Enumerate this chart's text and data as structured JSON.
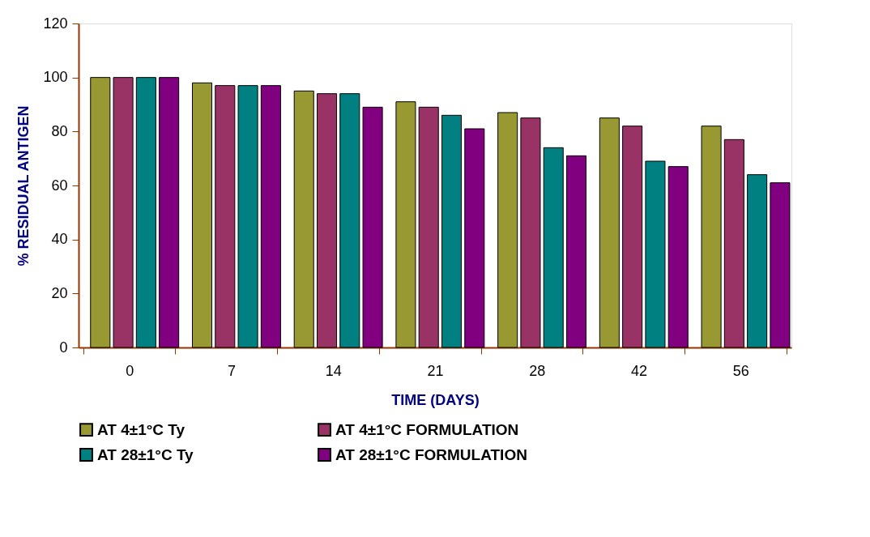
{
  "chart_data": {
    "type": "bar",
    "xlabel": "TIME (DAYS)",
    "ylabel": "% RESIDUAL ANTIGEN",
    "categories": [
      "0",
      "7",
      "14",
      "21",
      "28",
      "42",
      "56"
    ],
    "series": [
      {
        "name": "AT 4±1°C Ty",
        "color": "#999933",
        "values": [
          100,
          98,
          95,
          91,
          87,
          85,
          82
        ]
      },
      {
        "name": "AT 4±1°C FORMULATION",
        "color": "#993366",
        "values": [
          100,
          97,
          94,
          89,
          85,
          82,
          77
        ]
      },
      {
        "name": "AT 28±1°C Ty",
        "color": "#008080",
        "values": [
          100,
          97,
          94,
          86,
          74,
          69,
          64
        ]
      },
      {
        "name": "AT 28±1°C FORMULATION",
        "color": "#800080",
        "values": [
          100,
          97,
          89,
          81,
          71,
          67,
          61
        ]
      }
    ],
    "ylim": [
      0,
      120
    ],
    "yticks": [
      0,
      20,
      40,
      60,
      80,
      100,
      120
    ],
    "grid": false,
    "legend": "bottom"
  }
}
